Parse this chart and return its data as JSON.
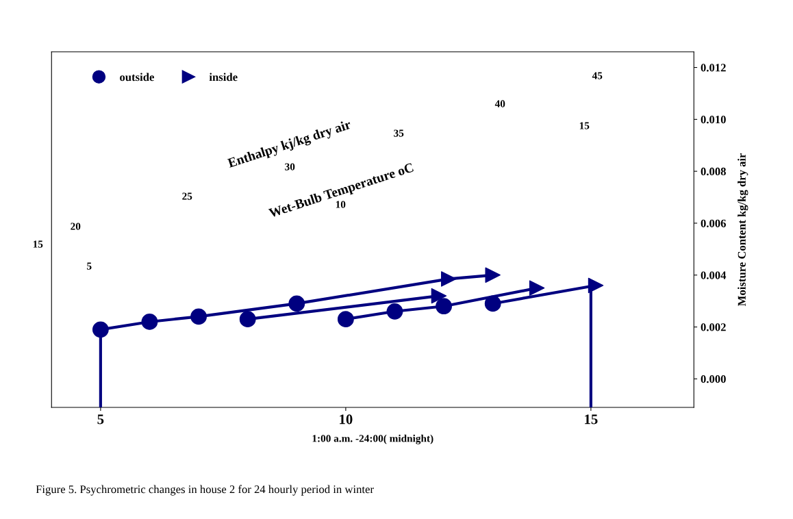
{
  "chart_data": {
    "type": "scatter",
    "xlabel": "1:00 a.m. -24:00( midnight)",
    "ylabel": "Moisture Content kg/kg dry air",
    "xlim": [
      4.0,
      17.1
    ],
    "xticks": [
      5,
      10,
      15
    ],
    "ylim": [
      -0.0011,
      0.0126
    ],
    "yticks": [
      {
        "value": 0,
        "label": "0.000"
      },
      {
        "value": 0.002,
        "label": "0.002"
      },
      {
        "value": 0.004,
        "label": "0.004"
      },
      {
        "value": 0.006,
        "label": "0.006"
      },
      {
        "value": 0.008,
        "label": "0.008"
      },
      {
        "value": 0.01,
        "label": "0.010"
      },
      {
        "value": 0.012,
        "label": "0.012"
      }
    ],
    "grid": false,
    "legend": "top left",
    "series": [
      {
        "type": "line",
        "color": "#000080",
        "x": [
          5,
          6,
          7,
          9,
          12.1,
          13.0
        ],
        "values": [
          0.0019,
          0.0022,
          0.0024,
          0.0029,
          0.00385,
          0.004
        ]
      },
      {
        "type": "line",
        "color": "#000080",
        "x": [
          8,
          11.9
        ],
        "values": [
          0.0023,
          0.0032
        ]
      },
      {
        "type": "line",
        "color": "#000080",
        "x": [
          10,
          11,
          12,
          13.9
        ],
        "values": [
          0.0023,
          0.0026,
          0.0028,
          0.0035
        ]
      },
      {
        "type": "line",
        "color": "#000080",
        "x": [
          13,
          15.1
        ],
        "values": [
          0.0029,
          0.0036
        ]
      },
      {
        "type": "line",
        "color": "#000080",
        "x": [
          5,
          5
        ],
        "values": [
          -0.0011,
          0.0019
        ]
      },
      {
        "type": "line",
        "color": "#000080",
        "x": [
          15,
          15
        ],
        "values": [
          -0.0011,
          0.0036
        ]
      },
      {
        "name": "outside",
        "marker": "circle",
        "color": "#000080",
        "x": [
          5,
          6,
          7,
          8,
          9,
          10,
          11,
          12,
          13
        ],
        "values": [
          0.0019,
          0.0022,
          0.0024,
          0.0023,
          0.0029,
          0.0023,
          0.0026,
          0.0028,
          0.0029
        ]
      },
      {
        "name": "inside",
        "marker": "triangle",
        "color": "#000080",
        "x": [
          12.1,
          13.0,
          11.9,
          13.9,
          15.1
        ],
        "values": [
          0.00385,
          0.004,
          0.0032,
          0.0035,
          0.0036
        ]
      }
    ],
    "annotations": [
      "Enthalpy kj/kg dry air",
      "Wet-Bulb Temperature oC",
      "15",
      "20",
      "25",
      "30",
      "35",
      "40",
      "45",
      "5",
      "10",
      "15",
      "Figure 5. Psychrometric changes in house 2 for 24 hourly period in winter"
    ]
  }
}
